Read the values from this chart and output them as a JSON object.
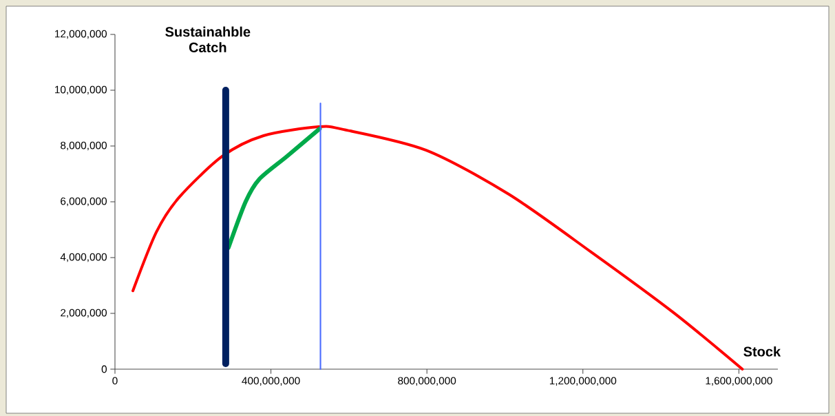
{
  "chart_data": {
    "type": "line",
    "xlabel": "Stock",
    "ylabel": "Sustainahble Catch",
    "xlim": [
      0,
      1700000000
    ],
    "ylim": [
      0,
      12000000
    ],
    "xticks": [
      0,
      {
        "value": 400000000,
        "label": "400,000,000"
      },
      {
        "value": 800000000,
        "label": "800,000,000"
      },
      {
        "value": 1200000000,
        "label": "1,200,000,000"
      },
      {
        "value": 1600000000,
        "label": "1,600,000,000"
      }
    ],
    "yticks": [
      0,
      {
        "value": 2000000,
        "label": "2,000,000"
      },
      {
        "value": 4000000,
        "label": "4,000,000"
      },
      {
        "value": 6000000,
        "label": "6,000,000"
      },
      {
        "value": 8000000,
        "label": "8,000,000"
      },
      {
        "value": 10000000,
        "label": "10,000,000"
      },
      {
        "value": 12000000,
        "label": "12,000,000"
      }
    ],
    "series": [
      {
        "color": "#ff0000",
        "x": [
          46000000,
          106000000,
          164000000,
          275000000,
          381000000,
          522000000,
          587000000,
          798000000,
          1010000000,
          1221000000,
          1433000000,
          1609000000
        ],
        "values": [
          2810000,
          4910000,
          6150000,
          7630000,
          8370000,
          8690000,
          8590000,
          7850000,
          6270000,
          4200000,
          2020000,
          0
        ]
      },
      {
        "color": "#00aa4a",
        "x": [
          291000000,
          335000000,
          370000000,
          441000000,
          525000000
        ],
        "values": [
          4350000,
          6000000,
          6810000,
          7630000,
          8620000
        ]
      },
      {
        "color": "#002060",
        "x": [
          284000000,
          284000000
        ],
        "values": [
          200000,
          10000000
        ]
      },
      {
        "color": "#4a6cff",
        "x": [
          527000000,
          527000000
        ],
        "values": [
          0,
          9530000
        ]
      }
    ]
  }
}
